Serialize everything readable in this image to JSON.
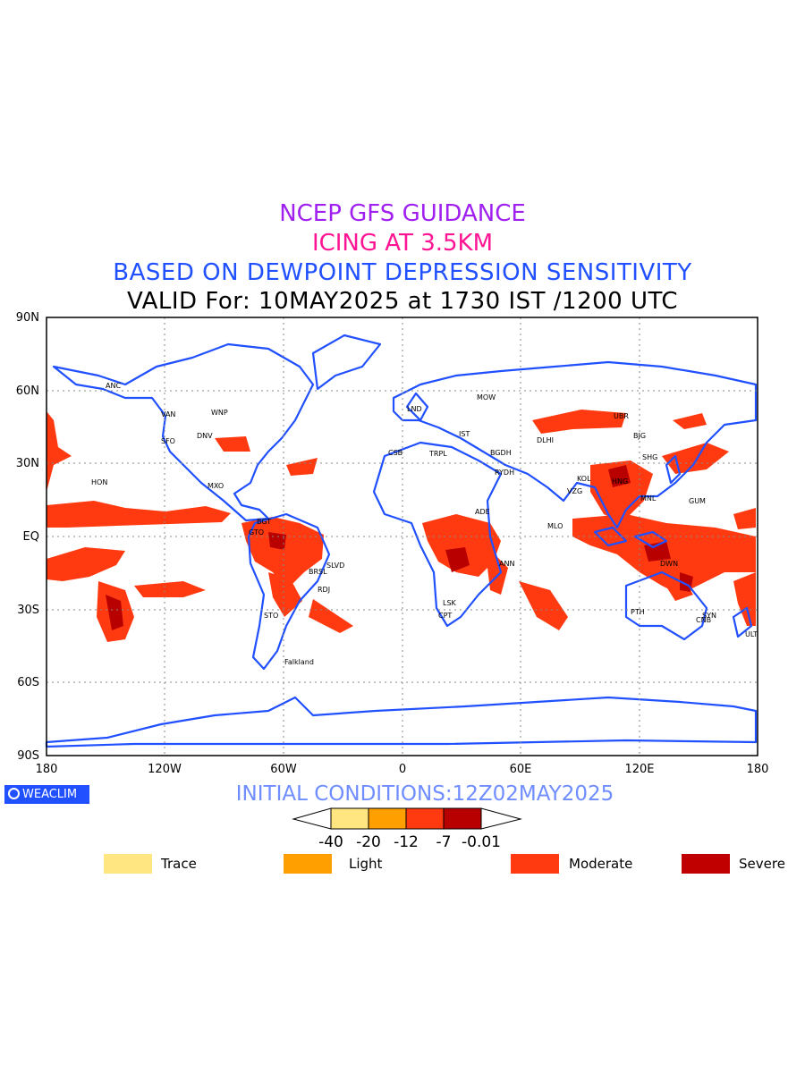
{
  "titles": {
    "line1": "NCEP GFS GUIDANCE",
    "line2": "ICING AT 3.5KM",
    "line3": "BASED ON DEWPOINT DEPRESSION SENSITIVITY",
    "line4": "VALID For: 10MAY2025 at 1730 IST /1200 UTC"
  },
  "axes": {
    "lat_labels": [
      "90N",
      "60N",
      "30N",
      "EQ",
      "30S",
      "60S",
      "90S"
    ],
    "lon_labels": [
      "180",
      "120W",
      "60W",
      "0",
      "60E",
      "120E",
      "180"
    ]
  },
  "stations": [
    "ANC",
    "HON",
    "VAN",
    "WNP",
    "SFO",
    "DNV",
    "MXO",
    "BGT",
    "GTO",
    "SLVD",
    "BRSL",
    "RDJ",
    "STO",
    "Falkland",
    "MOW",
    "LND",
    "CSB",
    "TRPL",
    "ADE",
    "LSK",
    "CPT",
    "ANN",
    "MLO",
    "PTH",
    "GUM",
    "DWN",
    "SYN",
    "ULT",
    "MNL",
    "SHG",
    "BJG",
    "UBR",
    "VZG",
    "KOL",
    "DLHI",
    "HNG",
    "CNB",
    "IST",
    "BGDH",
    "RYDH"
  ],
  "logo": "WEACLIM",
  "initial_conditions": "INITIAL CONDITIONS:12Z02MAY2025",
  "colorbar": {
    "ticks": [
      "-40",
      "-20",
      "-12",
      "-7",
      "-0.01"
    ],
    "colors": [
      "#ffe680",
      "#ffa000",
      "#ff3a10",
      "#b80000"
    ]
  },
  "legend": [
    {
      "label": "Trace",
      "color": "#ffe680"
    },
    {
      "label": "Light",
      "color": "#ffa000"
    },
    {
      "label": "Moderate",
      "color": "#ff3a10"
    },
    {
      "label": "Severe",
      "color": "#c00000"
    }
  ],
  "colors": {
    "coast": "#2050ff",
    "grid": "#888888"
  }
}
